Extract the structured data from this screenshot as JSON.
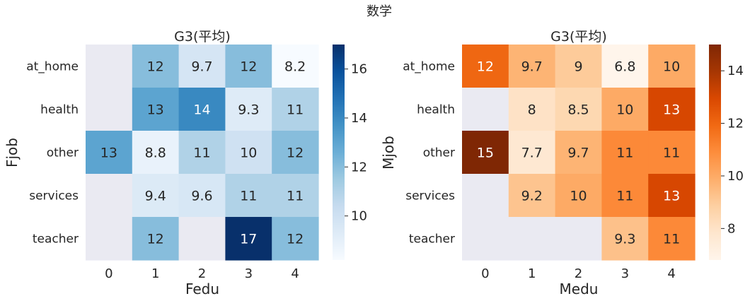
{
  "suptitle": "数学",
  "chart_data": [
    {
      "type": "heatmap",
      "title": "G3(平均)",
      "xlabel": "Fedu",
      "ylabel": "Fjob",
      "x_categories": [
        "0",
        "1",
        "2",
        "3",
        "4"
      ],
      "y_categories": [
        "at_home",
        "health",
        "other",
        "services",
        "teacher"
      ],
      "values": [
        [
          null,
          12,
          9.7,
          12,
          8.2
        ],
        [
          null,
          13,
          14,
          9.3,
          11
        ],
        [
          13,
          8.8,
          11,
          10,
          12
        ],
        [
          null,
          9.4,
          9.6,
          11,
          11
        ],
        [
          null,
          12,
          null,
          17,
          12
        ]
      ],
      "colorscale": "Blues",
      "colorbar_range": [
        8.2,
        17
      ],
      "colorbar_ticks": [
        "10",
        "12",
        "14",
        "16"
      ],
      "missing_color": "#eaeaf2"
    },
    {
      "type": "heatmap",
      "title": "G3(平均)",
      "xlabel": "Medu",
      "ylabel": "Mjob",
      "x_categories": [
        "0",
        "1",
        "2",
        "3",
        "4"
      ],
      "y_categories": [
        "at_home",
        "health",
        "other",
        "services",
        "teacher"
      ],
      "values": [
        [
          12,
          9.7,
          9,
          6.8,
          10
        ],
        [
          null,
          8,
          8.5,
          10,
          13
        ],
        [
          15,
          7.7,
          9.7,
          11,
          11
        ],
        [
          null,
          9.2,
          10,
          11,
          13
        ],
        [
          null,
          null,
          null,
          9.3,
          11
        ]
      ],
      "colorscale": "Oranges",
      "colorbar_range": [
        6.8,
        15
      ],
      "colorbar_ticks": [
        "8",
        "10",
        "12",
        "14"
      ],
      "missing_color": "#eaeaf2"
    }
  ]
}
